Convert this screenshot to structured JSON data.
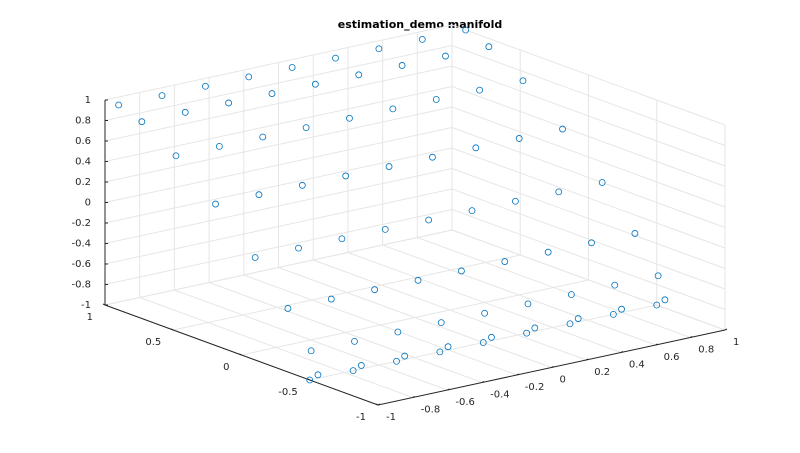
{
  "chart_data": {
    "type": "scatter3d",
    "title": "estimation_demo manifold",
    "series": [
      {
        "color": "#0072BD",
        "x": [
          -1,
          -0.75,
          -0.5,
          -0.25,
          0,
          0.25,
          0.5,
          0.75,
          1,
          -1,
          -0.75,
          -0.5,
          -0.25,
          0,
          0.25,
          0.5,
          0.75,
          1,
          -1,
          -0.75,
          -0.5,
          -0.25,
          0,
          0.25,
          0.5,
          0.75,
          1,
          -1,
          -0.75,
          -0.5,
          -0.25,
          0,
          0.25,
          0.5,
          0.75,
          1,
          -1,
          -0.75,
          -0.5,
          -0.25,
          0,
          0.25,
          0.5,
          0.75,
          1,
          -1,
          -0.75,
          -0.5,
          -0.25,
          0,
          0.25,
          0.5,
          0.75,
          1,
          -1,
          -0.75,
          -0.5,
          -0.25,
          0,
          0.25,
          0.5,
          0.75,
          1,
          -1,
          -0.75,
          -0.5,
          -0.25,
          0,
          0.25,
          0.5,
          0.75,
          1,
          -1,
          -0.75,
          -0.5,
          -0.25,
          0,
          0.25,
          0.5,
          0.75,
          1
        ],
        "y": [
          0.9,
          0.9,
          0.9,
          0.9,
          0.9,
          0.9,
          0.9,
          0.9,
          0.9,
          0.73,
          0.73,
          0.73,
          0.73,
          0.73,
          0.73,
          0.73,
          0.73,
          0.73,
          0.48,
          0.48,
          0.48,
          0.48,
          0.48,
          0.48,
          0.48,
          0.48,
          0.48,
          0.19,
          0.19,
          0.19,
          0.19,
          0.19,
          0.19,
          0.19,
          0.19,
          0.19,
          -0.1,
          -0.1,
          -0.1,
          -0.1,
          -0.1,
          -0.1,
          -0.1,
          -0.1,
          -0.1,
          -0.34,
          -0.34,
          -0.34,
          -0.34,
          -0.34,
          -0.34,
          -0.34,
          -0.34,
          -0.34,
          -0.51,
          -0.51,
          -0.51,
          -0.51,
          -0.51,
          -0.51,
          -0.51,
          -0.51,
          -0.51,
          -0.56,
          -0.56,
          -0.56,
          -0.56,
          -0.56,
          -0.56,
          -0.56,
          -0.56,
          -0.56,
          -0.5,
          -0.5,
          -0.5,
          -0.5,
          -0.5,
          -0.5,
          -0.5,
          -0.5,
          -0.5
        ],
        "z": [
          1,
          1,
          1,
          1,
          1,
          1,
          1,
          1,
          1,
          0.92,
          0.92,
          0.92,
          0.92,
          0.92,
          0.92,
          0.92,
          0.92,
          0.92,
          0.71,
          0.71,
          0.71,
          0.71,
          0.71,
          0.71,
          0.71,
          0.71,
          0.71,
          0.38,
          0.38,
          0.38,
          0.38,
          0.38,
          0.38,
          0.38,
          0.38,
          0.38,
          0,
          0,
          0,
          0,
          0,
          0,
          0,
          0,
          0,
          -0.38,
          -0.38,
          -0.38,
          -0.38,
          -0.38,
          -0.38,
          -0.38,
          -0.38,
          -0.38,
          -0.71,
          -0.71,
          -0.71,
          -0.71,
          -0.71,
          -0.71,
          -0.71,
          -0.71,
          -0.71,
          -0.92,
          -0.92,
          -0.92,
          -0.92,
          -0.92,
          -0.92,
          -0.92,
          -0.92,
          -0.92,
          -1,
          -1,
          -1,
          -1,
          -1,
          -1,
          -1,
          -1,
          -1
        ]
      }
    ],
    "xlim": [
      -1,
      1
    ],
    "ylim": [
      -1,
      1
    ],
    "zlim": [
      -1,
      1
    ],
    "xticks": [
      -1,
      -0.8,
      -0.6,
      -0.4,
      -0.2,
      0,
      0.2,
      0.4,
      0.6,
      0.8,
      1
    ],
    "yticks": [
      -1,
      -0.5,
      0,
      0.5,
      1
    ],
    "zticks": [
      -1,
      -0.8,
      -0.6,
      -0.4,
      -0.2,
      0,
      0.2,
      0.4,
      0.6,
      0.8,
      1
    ],
    "grid": true
  }
}
